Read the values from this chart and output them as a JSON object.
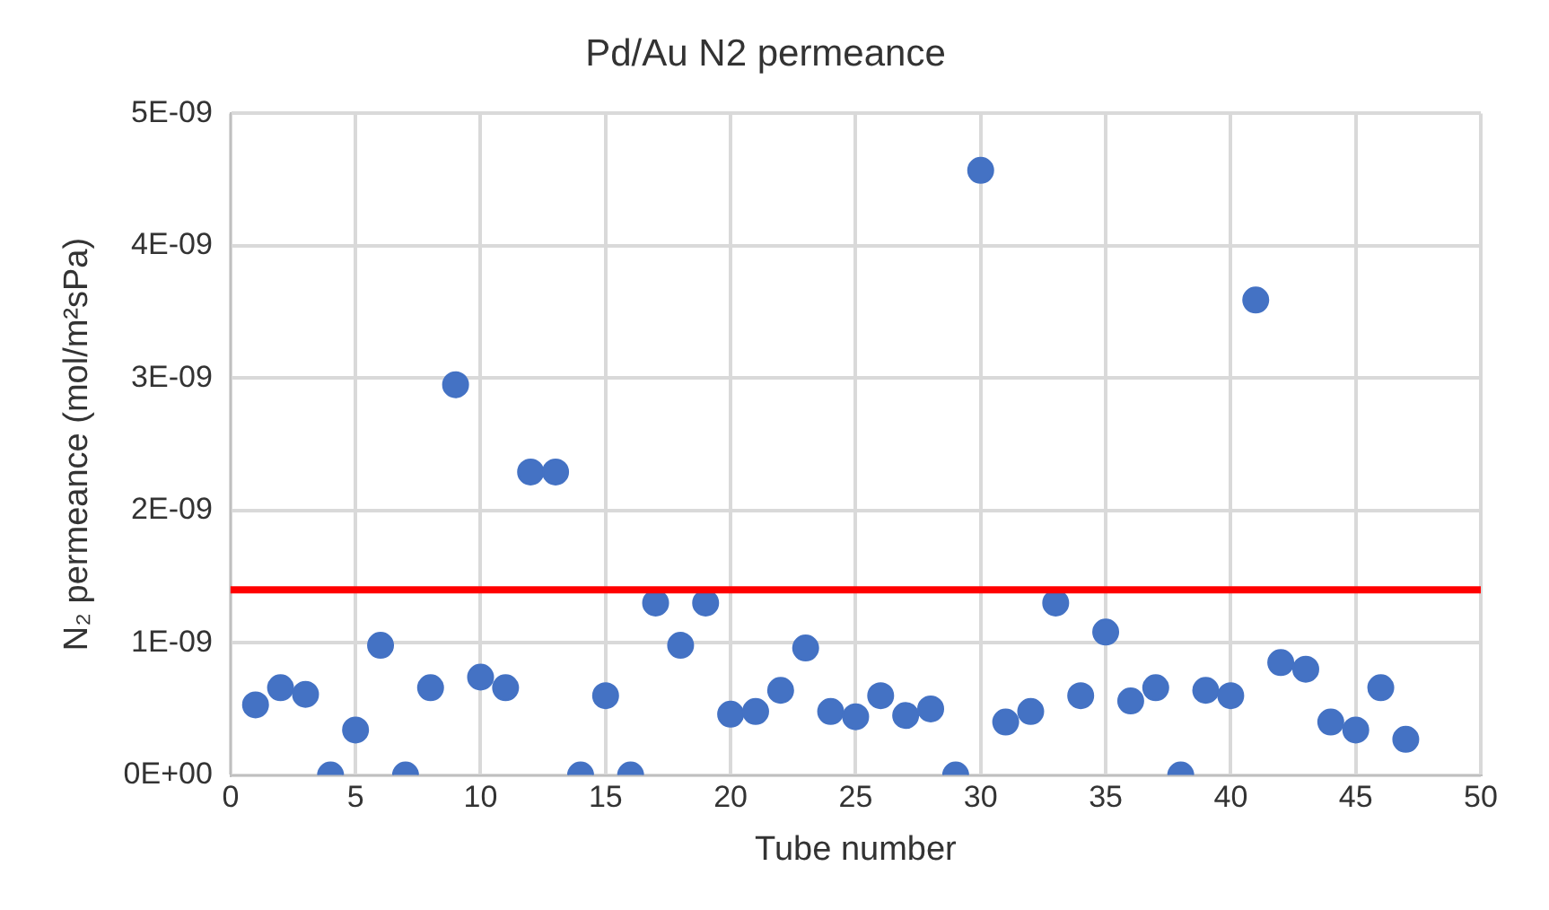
{
  "chart_data": {
    "type": "scatter",
    "title": "Pd/Au N2 permeance",
    "xlabel": "Tube number",
    "ylabel": "N₂ permeance (mol/m²sPa)",
    "x": [
      1,
      2,
      3,
      4,
      5,
      6,
      7,
      8,
      9,
      10,
      11,
      12,
      13,
      14,
      15,
      16,
      17,
      18,
      19,
      20,
      21,
      22,
      23,
      24,
      25,
      26,
      27,
      28,
      29,
      30,
      31,
      32,
      33,
      34,
      35,
      36,
      37,
      38,
      39,
      40,
      41,
      42,
      43,
      44,
      45,
      46,
      47
    ],
    "series": [
      {
        "color": "#4472c4",
        "values": [
          5.3e-10,
          6.6e-10,
          6.1e-10,
          0,
          3.4e-10,
          9.8e-10,
          0,
          6.6e-10,
          2.95e-09,
          7.4e-10,
          6.6e-10,
          2.29e-09,
          2.29e-09,
          0,
          6e-10,
          0,
          1.3e-09,
          9.8e-10,
          1.3e-09,
          4.6e-10,
          4.8e-10,
          6.4e-10,
          9.6e-10,
          4.8e-10,
          4.4e-10,
          6e-10,
          4.5e-10,
          5e-10,
          0,
          4.57e-09,
          4e-10,
          4.8e-10,
          1.3e-09,
          6e-10,
          1.08e-09,
          5.6e-10,
          6.6e-10,
          0,
          6.4e-10,
          6e-10,
          3.59e-09,
          8.5e-10,
          8e-10,
          4e-10,
          3.4e-10,
          6.6e-10,
          2.7e-10
        ]
      }
    ],
    "xlim": [
      0,
      50
    ],
    "xticks": [
      0,
      5,
      10,
      15,
      20,
      25,
      30,
      35,
      40,
      45,
      50
    ],
    "ylim": [
      0,
      5e-09
    ],
    "yticks": [
      {
        "value": 0,
        "label": "0E+00"
      },
      {
        "value": 1e-09,
        "label": "1E-09"
      },
      {
        "value": 2e-09,
        "label": "2E-09"
      },
      {
        "value": 3e-09,
        "label": "3E-09"
      },
      {
        "value": 4e-09,
        "label": "4E-09"
      },
      {
        "value": 5e-09,
        "label": "5E-09"
      }
    ],
    "ref_lines": [
      {
        "axis": "y",
        "value": 1.4e-09,
        "color": "#ff0000",
        "line_style": "solid"
      }
    ],
    "grid": true,
    "marker": "circle",
    "legend": false
  }
}
